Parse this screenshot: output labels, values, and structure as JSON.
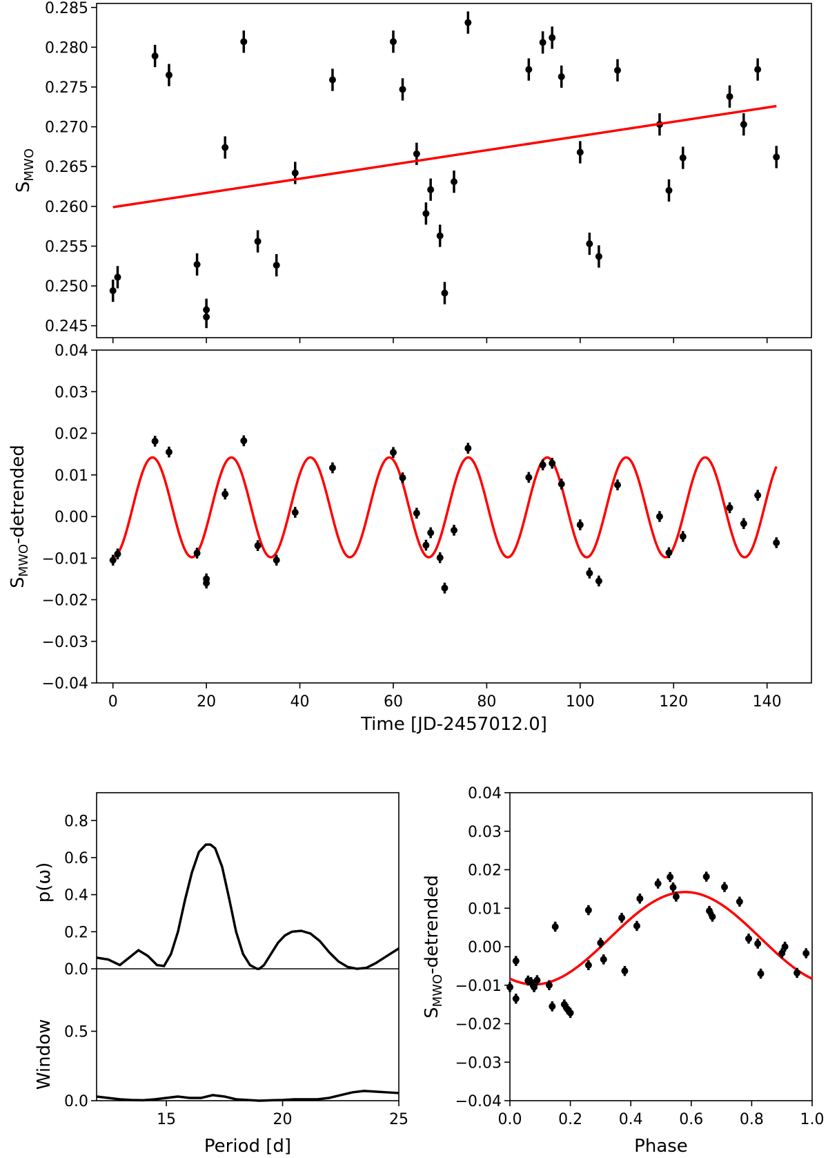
{
  "colors": {
    "fit": "#ff0000",
    "points": "#000000",
    "frame": "#000000"
  },
  "chart_data": [
    {
      "id": "top",
      "type": "scatter",
      "title": "",
      "ylabel_main": "S",
      "ylabel_sub": "MWO",
      "xlabel": "",
      "xlim": [
        -3.5,
        149.5
      ],
      "ylim": [
        0.2435,
        0.2855
      ],
      "xticks": [
        0,
        20,
        40,
        60,
        80,
        100,
        120,
        140
      ],
      "yticks": [
        0.245,
        0.25,
        0.255,
        0.26,
        0.265,
        0.27,
        0.275,
        0.28,
        0.285
      ],
      "yticklabels": [
        "0.245",
        "0.250",
        "0.255",
        "0.260",
        "0.265",
        "0.270",
        "0.275",
        "0.280",
        "0.285"
      ],
      "show_xticklabels": false,
      "grid": false,
      "series": [
        {
          "name": "S_MWO measurements",
          "type": "errorbar",
          "x": [
            0,
            1,
            9,
            12,
            18,
            20,
            20,
            24,
            28,
            31,
            35,
            39,
            47,
            60,
            62,
            65,
            67,
            68,
            70,
            71,
            73,
            76,
            89,
            92,
            94,
            96,
            100,
            102,
            104,
            108,
            117,
            119,
            122,
            132,
            135,
            138,
            142
          ],
          "y": [
            0.2494,
            0.2511,
            0.2789,
            0.2765,
            0.2527,
            0.247,
            0.2461,
            0.2674,
            0.2807,
            0.2556,
            0.2526,
            0.2642,
            0.2759,
            0.2807,
            0.2747,
            0.2666,
            0.2591,
            0.2621,
            0.2563,
            0.2491,
            0.2631,
            0.2831,
            0.2772,
            0.2806,
            0.2812,
            0.2763,
            0.2668,
            0.2553,
            0.2537,
            0.2771,
            0.2703,
            0.262,
            0.2661,
            0.2738,
            0.2703,
            0.2772,
            0.2662
          ],
          "yerr": 0.0014
        },
        {
          "name": "linear trend",
          "type": "line",
          "x": [
            0,
            142
          ],
          "y": [
            0.2599,
            0.2726
          ]
        }
      ]
    },
    {
      "id": "mid",
      "type": "scatter",
      "title": "",
      "ylabel_main": "S",
      "ylabel_sub": "MWO",
      "ylabel_suffix": "-detrended",
      "xlabel": "Time [JD-2457012.0]",
      "xlim": [
        -3.5,
        149.5
      ],
      "ylim": [
        -0.04,
        0.04
      ],
      "xticks": [
        0,
        20,
        40,
        60,
        80,
        100,
        120,
        140
      ],
      "yticks": [
        -0.04,
        -0.03,
        -0.02,
        -0.01,
        0.0,
        0.01,
        0.02,
        0.03,
        0.04
      ],
      "yticklabels": [
        "−0.04",
        "−0.03",
        "−0.02",
        "−0.01",
        "0.00",
        "0.01",
        "0.02",
        "0.03",
        "0.04"
      ],
      "grid": false,
      "series": [
        {
          "name": "detrended S_MWO",
          "type": "errorbar",
          "x": [
            0,
            1,
            9,
            12,
            18,
            20,
            20,
            24,
            28,
            31,
            35,
            39,
            47,
            60,
            62,
            65,
            67,
            68,
            70,
            71,
            73,
            76,
            89,
            92,
            94,
            96,
            100,
            102,
            104,
            108,
            117,
            119,
            122,
            132,
            135,
            138,
            142
          ],
          "y": [
            -0.0105,
            -0.009,
            0.0181,
            0.0155,
            -0.0088,
            -0.015,
            -0.016,
            0.0054,
            0.0182,
            -0.007,
            -0.0105,
            0.001,
            0.0117,
            0.0154,
            0.0093,
            0.0008,
            -0.0069,
            -0.0039,
            -0.0099,
            -0.0172,
            -0.0033,
            0.0164,
            0.0094,
            0.0124,
            0.0128,
            0.0078,
            -0.002,
            -0.0136,
            -0.0155,
            0.0076,
            0.0,
            -0.0087,
            -0.0048,
            0.0021,
            -0.0017,
            0.0051,
            -0.0063
          ],
          "yerr": 0.0013
        },
        {
          "name": "sinusoidal fit",
          "type": "line",
          "model": "sine",
          "period_days": 16.9,
          "mean": 0.0022,
          "amplitude": 0.012,
          "phase_offset": 0.5,
          "x_range": [
            0,
            142
          ]
        }
      ]
    },
    {
      "id": "periodogram",
      "type": "line",
      "title": "",
      "ylabel": "p(ω)",
      "xlabel": "",
      "xlim": [
        12,
        25
      ],
      "ylim": [
        0,
        0.95
      ],
      "xticks": [
        15,
        20,
        25
      ],
      "yticks": [
        0.0,
        0.2,
        0.4,
        0.6,
        0.8
      ],
      "yticklabels": [
        "0.0",
        "0.2",
        "0.4",
        "0.6",
        "0.8"
      ],
      "show_xticklabels": false,
      "grid": false,
      "series": [
        {
          "name": "periodogram power",
          "x": [
            12.0,
            12.5,
            13.0,
            13.4,
            13.8,
            14.2,
            14.6,
            14.9,
            15.2,
            15.5,
            15.8,
            16.1,
            16.4,
            16.7,
            16.9,
            17.1,
            17.4,
            17.7,
            18.0,
            18.3,
            18.6,
            18.9,
            19.0,
            19.2,
            19.5,
            19.8,
            20.1,
            20.4,
            20.8,
            21.2,
            21.6,
            22.0,
            22.4,
            22.8,
            23.2,
            23.6,
            24.0,
            24.5,
            25.0
          ],
          "y": [
            0.06,
            0.05,
            0.02,
            0.06,
            0.1,
            0.07,
            0.02,
            0.015,
            0.08,
            0.2,
            0.37,
            0.52,
            0.63,
            0.67,
            0.67,
            0.65,
            0.55,
            0.38,
            0.2,
            0.08,
            0.02,
            0.0,
            0.0,
            0.02,
            0.08,
            0.14,
            0.18,
            0.2,
            0.205,
            0.19,
            0.15,
            0.09,
            0.04,
            0.01,
            0.0,
            0.005,
            0.03,
            0.07,
            0.11
          ]
        }
      ]
    },
    {
      "id": "window",
      "type": "line",
      "title": "",
      "ylabel": "Window",
      "xlabel": "Period [d]",
      "xlim": [
        12,
        25
      ],
      "ylim": [
        0,
        0.95
      ],
      "xticks": [
        15,
        20,
        25
      ],
      "yticks": [
        0.0,
        0.5
      ],
      "yticklabels": [
        "0.0",
        "0.5"
      ],
      "xticklabels": [
        "15",
        "20",
        "25"
      ],
      "grid": false,
      "series": [
        {
          "name": "window function",
          "x": [
            12.0,
            12.5,
            13.0,
            13.5,
            14.0,
            14.5,
            15.0,
            15.5,
            16.0,
            16.5,
            17.0,
            17.5,
            18.0,
            18.5,
            19.0,
            19.5,
            20.0,
            20.5,
            21.0,
            21.5,
            22.0,
            22.5,
            23.0,
            23.5,
            24.0,
            24.5,
            25.0
          ],
          "y": [
            0.03,
            0.02,
            0.01,
            0.005,
            0.003,
            0.01,
            0.02,
            0.03,
            0.02,
            0.02,
            0.04,
            0.03,
            0.01,
            0.005,
            0.0,
            0.003,
            0.005,
            0.01,
            0.01,
            0.01,
            0.02,
            0.04,
            0.06,
            0.07,
            0.065,
            0.06,
            0.055
          ]
        }
      ]
    },
    {
      "id": "phase",
      "type": "scatter",
      "title": "",
      "ylabel_main": "S",
      "ylabel_sub": "MWO",
      "ylabel_suffix": "-detrended",
      "xlabel": "Phase",
      "xlim": [
        0,
        1
      ],
      "ylim": [
        -0.04,
        0.04
      ],
      "xticks": [
        0,
        0.2,
        0.4,
        0.6,
        0.8,
        1.0
      ],
      "xticklabels": [
        "0.0",
        "0.2",
        "0.4",
        "0.6",
        "0.8",
        "1.0"
      ],
      "yticks": [
        -0.04,
        -0.03,
        -0.02,
        -0.01,
        0.0,
        0.01,
        0.02,
        0.03,
        0.04
      ],
      "yticklabels": [
        "−0.04",
        "−0.03",
        "−0.02",
        "−0.01",
        "0.00",
        "0.01",
        "0.02",
        "0.03",
        "0.04"
      ],
      "grid": false,
      "series": [
        {
          "name": "phased detrended S_MWO",
          "type": "errorbar",
          "x": [
            0.0,
            0.02,
            0.02,
            0.06,
            0.07,
            0.08,
            0.09,
            0.13,
            0.14,
            0.15,
            0.18,
            0.19,
            0.2,
            0.26,
            0.26,
            0.3,
            0.31,
            0.37,
            0.38,
            0.42,
            0.43,
            0.49,
            0.53,
            0.54,
            0.55,
            0.65,
            0.66,
            0.67,
            0.71,
            0.76,
            0.79,
            0.82,
            0.83,
            0.9,
            0.91,
            0.95,
            0.98
          ],
          "y": [
            -0.0105,
            -0.0037,
            -0.0135,
            -0.0088,
            -0.0092,
            -0.0105,
            -0.0087,
            -0.01,
            -0.0155,
            0.0052,
            -0.015,
            -0.0162,
            -0.0172,
            0.0095,
            -0.0048,
            0.001,
            -0.0033,
            0.0075,
            -0.0063,
            0.0054,
            0.0125,
            0.0164,
            0.0181,
            0.0154,
            0.013,
            0.0182,
            0.0093,
            0.0078,
            0.0155,
            0.0117,
            0.0021,
            0.0008,
            -0.007,
            -0.0017,
            0.0,
            -0.0068,
            -0.0017
          ],
          "yerr": 0.0013
        },
        {
          "name": "sinusoidal fit",
          "type": "line",
          "model": "sine",
          "mean": 0.0022,
          "amplitude": 0.012,
          "phase_of_max": 0.58,
          "x_range": [
            0,
            1
          ]
        }
      ]
    }
  ]
}
